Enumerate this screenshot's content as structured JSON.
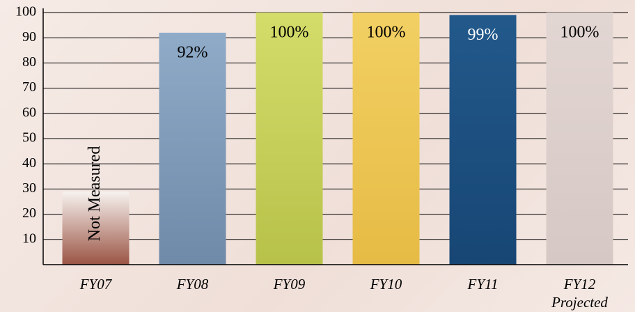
{
  "chart_data": {
    "type": "bar",
    "categories": [
      "FY07",
      "FY08",
      "FY09",
      "FY10",
      "FY11",
      "FY12\nProjected"
    ],
    "values": [
      29,
      92,
      100,
      100,
      99,
      100
    ],
    "value_labels": [
      "Not Measured",
      "92%",
      "100%",
      "100%",
      "99%",
      "100%"
    ],
    "colors": [
      [
        "#f7f2ef",
        "#9a5444"
      ],
      [
        "#8fabc8",
        "#6f8aa8"
      ],
      [
        "#d4dc6a",
        "#b7c24a"
      ],
      [
        "#f2d063",
        "#e6bb45"
      ],
      [
        "#22598b",
        "#174674"
      ],
      [
        "#e2d6d3",
        "#d6c8c4"
      ]
    ],
    "ylim": [
      0,
      100
    ],
    "yticks": [
      10,
      20,
      30,
      40,
      50,
      60,
      70,
      80,
      90,
      100
    ],
    "grid": true
  }
}
